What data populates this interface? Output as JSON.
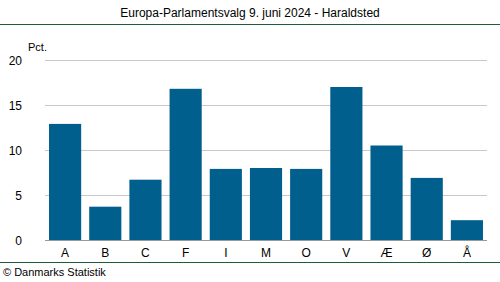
{
  "chart_data": {
    "type": "bar",
    "title": "Europa-Parlamentsvalg 9. juni 2024 - Haraldsted",
    "y_label": "Pct.",
    "source": "© Danmarks Statistik",
    "categories": [
      "A",
      "B",
      "C",
      "F",
      "I",
      "M",
      "O",
      "V",
      "Æ",
      "Ø",
      "Å"
    ],
    "values": [
      12.9,
      3.7,
      6.7,
      16.8,
      7.9,
      8.0,
      7.9,
      17.0,
      10.5,
      6.9,
      2.2
    ],
    "color": "#005f8d",
    "ylim": [
      0,
      20
    ],
    "yticks": [
      0,
      5,
      10,
      15,
      20
    ],
    "grid": true
  }
}
